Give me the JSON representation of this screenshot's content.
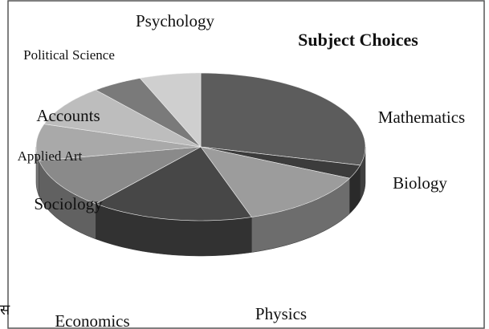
{
  "chart_data": {
    "type": "pie3d",
    "title": "Subject Choices",
    "categories": [
      "Mathematics",
      "Biology",
      "Physics",
      "Economics",
      "Sociology",
      "Applied Art",
      "Accounts",
      "Political Science",
      "Psychology"
    ],
    "values": [
      29,
      3,
      13,
      16,
      11,
      8,
      9,
      5,
      6
    ],
    "colors": [
      "#5c5c5c",
      "#3c3c3c",
      "#9c9c9c",
      "#474747",
      "#8a8a8a",
      "#a9a9a9",
      "#bdbdbd",
      "#7a7a7a",
      "#cfcfcf"
    ]
  },
  "caption_fragment": "स"
}
